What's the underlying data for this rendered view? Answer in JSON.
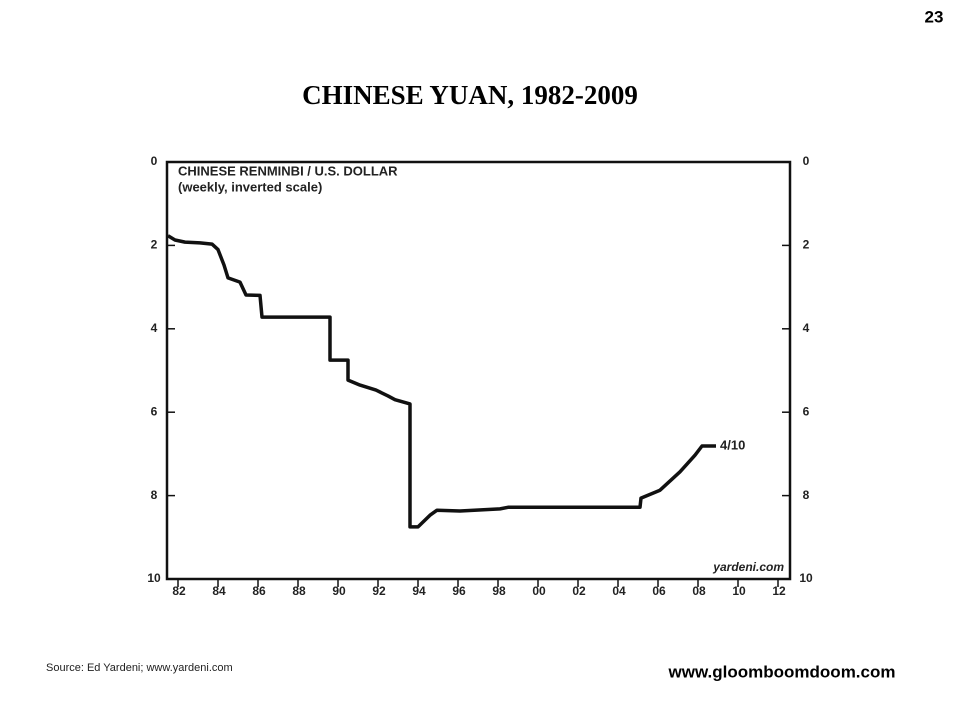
{
  "page_number": "23",
  "title": "CHINESE  YUAN,  1982-2009",
  "chart_data": {
    "type": "line",
    "title": "CHINESE RENMINBI / U.S. DOLLAR",
    "subtitle": "(weekly, inverted scale)",
    "x": [
      1981.5,
      1981.85,
      1982.35,
      1983.1,
      1983.7,
      1984,
      1984.3,
      1984.5,
      1985.1,
      1985.4,
      1986.1,
      1986.2,
      1989.6,
      1989.6,
      1990.5,
      1990.5,
      1991.1,
      1991.9,
      1992.5,
      1992.85,
      1993.6,
      1993.6,
      1994,
      1994.6,
      1994.95,
      1996.1,
      1998.1,
      1998.5,
      2005.1,
      2005.15,
      2006.1,
      2007.1,
      2007.85,
      2008.2,
      2008.9
    ],
    "values": [
      1.77,
      1.87,
      1.92,
      1.94,
      1.97,
      2.1,
      2.47,
      2.78,
      2.88,
      3.19,
      3.2,
      3.72,
      3.72,
      4.75,
      4.75,
      5.23,
      5.35,
      5.47,
      5.61,
      5.7,
      5.8,
      8.75,
      8.75,
      8.47,
      8.35,
      8.37,
      8.32,
      8.28,
      8.28,
      8.06,
      7.87,
      7.43,
      7.03,
      6.81,
      6.81
    ],
    "color": "#111111",
    "end_label": "4/10",
    "watermark": "yardeni.com",
    "xlim": [
      1981.45,
      2012.6
    ],
    "xticks": [
      {
        "value": 1982,
        "label": "82"
      },
      {
        "value": 1984,
        "label": "84"
      },
      {
        "value": 1986,
        "label": "86"
      },
      {
        "value": 1988,
        "label": "88"
      },
      {
        "value": 1990,
        "label": "90"
      },
      {
        "value": 1992,
        "label": "92"
      },
      {
        "value": 1994,
        "label": "94"
      },
      {
        "value": 1996,
        "label": "96"
      },
      {
        "value": 1998,
        "label": "98"
      },
      {
        "value": 2000,
        "label": "00"
      },
      {
        "value": 2002,
        "label": "02"
      },
      {
        "value": 2004,
        "label": "04"
      },
      {
        "value": 2006,
        "label": "06"
      },
      {
        "value": 2008,
        "label": "08"
      },
      {
        "value": 2010,
        "label": "10"
      },
      {
        "value": 2012,
        "label": "12"
      }
    ],
    "ylim": [
      0,
      10
    ],
    "yticks": [
      0,
      2,
      4,
      6,
      8,
      10
    ],
    "y_inverted": true,
    "grid": false
  },
  "source": "Source: Ed Yardeni; www.yardeni.com",
  "website": "www.gloomboomdoom.com"
}
